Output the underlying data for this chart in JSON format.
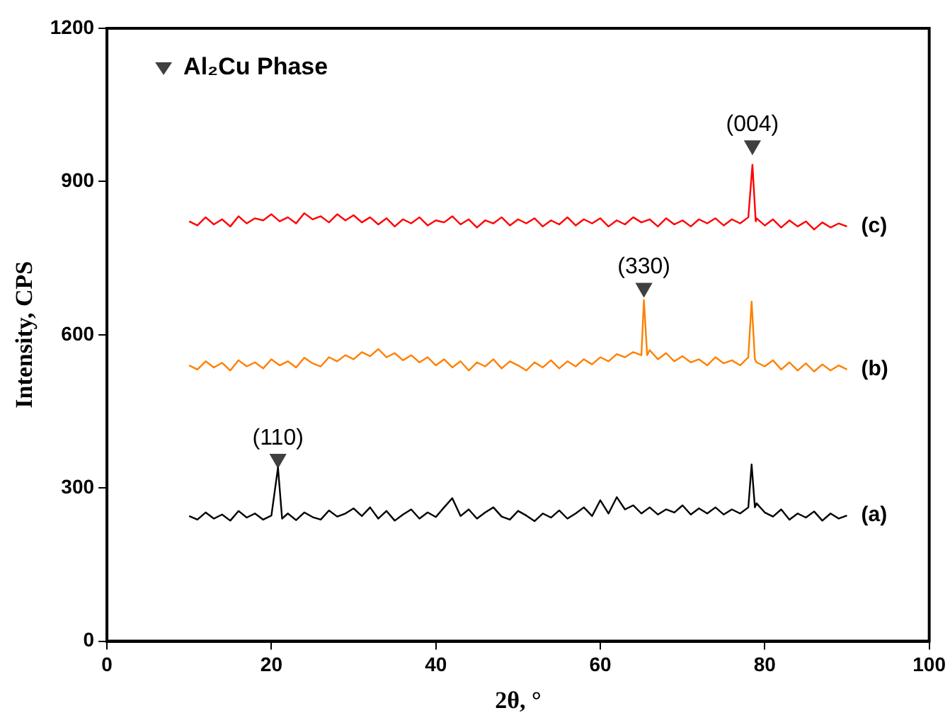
{
  "chart_data": {
    "type": "line",
    "xlabel": "2θ, °",
    "ylabel": "Intensity, CPS",
    "xlim": [
      0,
      100
    ],
    "xticks": [
      0,
      20,
      40,
      60,
      80,
      100
    ],
    "ylim": [
      0,
      1200
    ],
    "yticks": [
      0,
      300,
      600,
      900,
      1200
    ],
    "grid": false,
    "legend": "top left",
    "marker": "none",
    "series": [
      {
        "name": "(a)",
        "color": "#000000",
        "x": [
          10,
          11,
          12,
          13,
          14,
          15,
          16,
          17,
          18,
          19,
          20,
          20.8,
          21.3,
          22,
          23,
          24,
          25,
          26,
          27,
          28,
          29,
          30,
          31,
          32,
          33,
          34,
          35,
          36,
          37,
          38,
          39,
          40,
          41,
          42,
          43,
          44,
          45,
          46,
          47,
          48,
          49,
          50,
          51,
          52,
          53,
          54,
          55,
          56,
          57,
          58,
          59,
          60,
          61,
          62,
          63,
          64,
          65,
          66,
          67,
          68,
          69,
          70,
          71,
          72,
          73,
          74,
          75,
          76,
          77,
          78,
          78.4,
          78.8,
          79,
          80,
          81,
          82,
          83,
          84,
          85,
          86,
          87,
          88,
          89,
          90
        ],
        "values": [
          245,
          238,
          252,
          240,
          248,
          236,
          255,
          242,
          250,
          238,
          246,
          340,
          240,
          250,
          237,
          252,
          243,
          238,
          256,
          244,
          250,
          260,
          245,
          262,
          240,
          255,
          236,
          248,
          258,
          240,
          252,
          243,
          262,
          280,
          245,
          258,
          240,
          252,
          262,
          244,
          238,
          255,
          246,
          235,
          250,
          242,
          256,
          240,
          250,
          262,
          245,
          276,
          250,
          282,
          258,
          266,
          250,
          262,
          248,
          258,
          252,
          266,
          248,
          260,
          250,
          262,
          248,
          258,
          250,
          262,
          346,
          262,
          270,
          252,
          244,
          258,
          238,
          250,
          242,
          254,
          236,
          250,
          240,
          246
        ]
      },
      {
        "name": "(b)",
        "color": "#ff8000",
        "x": [
          10,
          11,
          12,
          13,
          14,
          15,
          16,
          17,
          18,
          19,
          20,
          21,
          22,
          23,
          24,
          25,
          26,
          27,
          28,
          29,
          30,
          31,
          32,
          33,
          34,
          35,
          36,
          37,
          38,
          39,
          40,
          41,
          42,
          43,
          44,
          45,
          46,
          47,
          48,
          49,
          50,
          51,
          52,
          53,
          54,
          55,
          56,
          57,
          58,
          59,
          60,
          61,
          62,
          63,
          64,
          65,
          65.3,
          65.7,
          66,
          67,
          68,
          69,
          70,
          71,
          72,
          73,
          74,
          75,
          76,
          77,
          78,
          78.4,
          78.8,
          79,
          80,
          81,
          82,
          83,
          84,
          85,
          86,
          87,
          88,
          89,
          90
        ],
        "values": [
          540,
          532,
          548,
          536,
          545,
          530,
          550,
          538,
          546,
          534,
          552,
          540,
          548,
          536,
          555,
          544,
          538,
          556,
          548,
          560,
          552,
          566,
          558,
          572,
          556,
          564,
          550,
          560,
          546,
          556,
          540,
          552,
          536,
          548,
          530,
          546,
          538,
          552,
          534,
          548,
          540,
          530,
          546,
          536,
          550,
          534,
          548,
          538,
          552,
          542,
          556,
          548,
          562,
          556,
          566,
          560,
          668,
          560,
          570,
          552,
          564,
          548,
          558,
          546,
          552,
          540,
          556,
          544,
          550,
          540,
          556,
          665,
          552,
          546,
          538,
          550,
          532,
          546,
          530,
          544,
          528,
          542,
          530,
          540,
          532
        ]
      },
      {
        "name": "(c)",
        "color": "#ff0000",
        "x": [
          10,
          11,
          12,
          13,
          14,
          15,
          16,
          17,
          18,
          19,
          20,
          21,
          22,
          23,
          24,
          25,
          26,
          27,
          28,
          29,
          30,
          31,
          32,
          33,
          34,
          35,
          36,
          37,
          38,
          39,
          40,
          41,
          42,
          43,
          44,
          45,
          46,
          47,
          48,
          49,
          50,
          51,
          52,
          53,
          54,
          55,
          56,
          57,
          58,
          59,
          60,
          61,
          62,
          63,
          64,
          65,
          66,
          67,
          68,
          69,
          70,
          71,
          72,
          73,
          74,
          75,
          76,
          77,
          78,
          78.5,
          78.9,
          79,
          80,
          81,
          82,
          83,
          84,
          85,
          86,
          87,
          88,
          89,
          90
        ],
        "values": [
          822,
          814,
          830,
          816,
          826,
          812,
          832,
          818,
          828,
          824,
          836,
          822,
          830,
          818,
          838,
          826,
          832,
          820,
          836,
          824,
          834,
          820,
          830,
          816,
          828,
          812,
          826,
          818,
          830,
          814,
          824,
          820,
          832,
          816,
          826,
          810,
          824,
          818,
          830,
          814,
          826,
          818,
          828,
          812,
          824,
          816,
          830,
          814,
          826,
          818,
          828,
          812,
          824,
          816,
          830,
          820,
          826,
          812,
          828,
          816,
          824,
          812,
          826,
          818,
          828,
          814,
          826,
          818,
          830,
          933,
          822,
          828,
          814,
          826,
          810,
          824,
          812,
          822,
          806,
          820,
          810,
          818,
          812
        ]
      },
      {
        "name": "Al₂Cu Phase",
        "type": "scatter",
        "marker": "triangle",
        "color": "#404040",
        "x": [
          20.8,
          65.3,
          78.5
        ],
        "values": [
          357,
          692,
          971
        ]
      }
    ],
    "annotations": [
      {
        "text": "(110)",
        "x": 20.8,
        "y": 357
      },
      {
        "text": "(330)",
        "x": 65.3,
        "y": 692
      },
      {
        "text": "(004)",
        "x": 78.5,
        "y": 971
      }
    ]
  }
}
